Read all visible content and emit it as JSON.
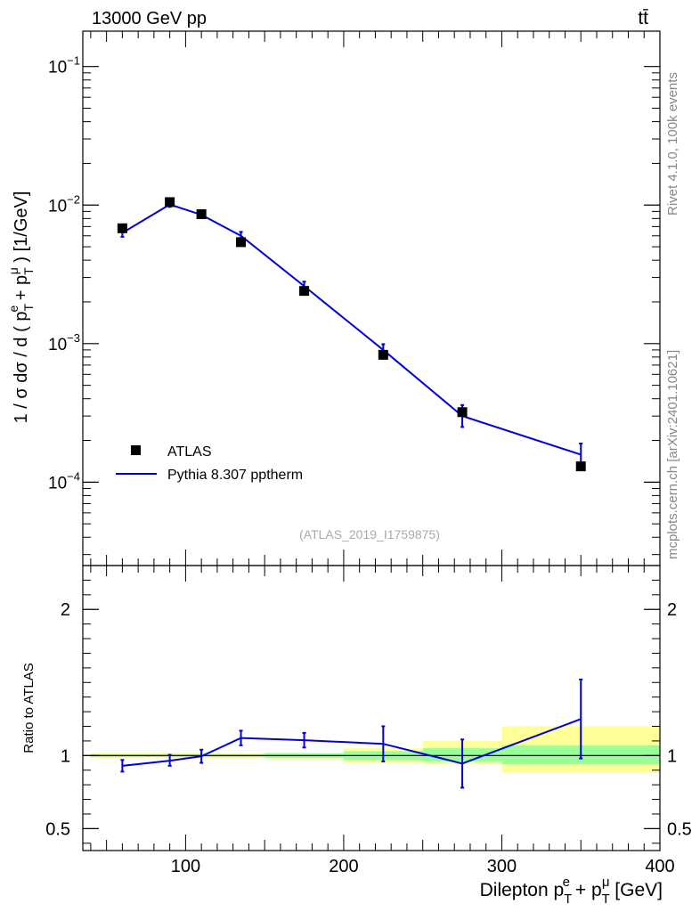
{
  "header": {
    "left": "13000 GeV pp",
    "right": "tt̄"
  },
  "side_labels": {
    "rivet": "Rivet 4.1.0,  100k events",
    "mcplots": "mcplots.cern.ch [arXiv:2401.10621]"
  },
  "watermark": "(ATLAS_2019_I1759875)",
  "colors": {
    "data": "#000000",
    "mc": "#0000dd",
    "band_inner": "#99ff99",
    "band_outer": "#ffff99"
  },
  "chart_data": [
    {
      "type": "line",
      "scale": "log",
      "title": "",
      "ylabel": "1 / σ  dσ / d ( p_T^e + p_T^μ ) [1/GeV]",
      "ylim": [
        2.5e-05,
        0.18
      ],
      "yticks": [
        {
          "value": 0.1,
          "mantissa": "10",
          "exp": "−1"
        },
        {
          "value": 0.01,
          "mantissa": "10",
          "exp": "−2"
        },
        {
          "value": 0.001,
          "mantissa": "10",
          "exp": "−3"
        },
        {
          "value": 0.0001,
          "mantissa": "10",
          "exp": "−4"
        }
      ],
      "xlim": [
        35,
        400
      ],
      "legend": {
        "position": "lower-left",
        "data_label": "ATLAS",
        "mc_label": "Pythia 8.307 pptherm"
      },
      "data_series": {
        "name": "ATLAS",
        "points": [
          {
            "x": 60,
            "y": 0.0068
          },
          {
            "x": 90,
            "y": 0.0105
          },
          {
            "x": 110,
            "y": 0.0086
          },
          {
            "x": 135,
            "y": 0.0054
          },
          {
            "x": 175,
            "y": 0.0024
          },
          {
            "x": 225,
            "y": 0.00083
          },
          {
            "x": 275,
            "y": 0.00032
          },
          {
            "x": 350,
            "y": 0.00013
          }
        ]
      },
      "mc_series": {
        "name": "Pythia 8.307 pptherm",
        "points": [
          {
            "x": 60,
            "y": 0.0063,
            "lo": 0.0059,
            "hi": 0.0067
          },
          {
            "x": 90,
            "y": 0.0101,
            "lo": 0.0097,
            "hi": 0.0105
          },
          {
            "x": 110,
            "y": 0.0085,
            "lo": 0.0081,
            "hi": 0.0089
          },
          {
            "x": 135,
            "y": 0.006,
            "lo": 0.0057,
            "hi": 0.0064
          },
          {
            "x": 175,
            "y": 0.0026,
            "lo": 0.0024,
            "hi": 0.0028
          },
          {
            "x": 225,
            "y": 0.0009,
            "lo": 0.00081,
            "hi": 0.00099
          },
          {
            "x": 275,
            "y": 0.0003,
            "lo": 0.00025,
            "hi": 0.00036
          },
          {
            "x": 350,
            "y": 0.000158,
            "lo": 0.000128,
            "hi": 0.00019
          }
        ]
      }
    },
    {
      "type": "line",
      "scale": "linear",
      "title": "",
      "ylabel": "Ratio to ATLAS",
      "xlabel": "Dilepton p_T^e + p_T^μ [GeV]",
      "ylim": [
        0.35,
        2.3
      ],
      "yticks": [
        {
          "value": 0.5,
          "label": "0.5"
        },
        {
          "value": 1,
          "label": "1"
        },
        {
          "value": 2,
          "label": "2"
        }
      ],
      "xlim": [
        35,
        400
      ],
      "xticks": [
        {
          "value": 100,
          "label": "100"
        },
        {
          "value": 200,
          "label": "200"
        },
        {
          "value": 300,
          "label": "300"
        },
        {
          "value": 400,
          "label": "400"
        }
      ],
      "bands": [
        {
          "x0": 40,
          "x1": 80,
          "inner": [
            0.99,
            1.01
          ],
          "outer": [
            0.985,
            1.015
          ]
        },
        {
          "x0": 80,
          "x1": 100,
          "inner": [
            0.99,
            1.01
          ],
          "outer": [
            0.985,
            1.015
          ]
        },
        {
          "x0": 100,
          "x1": 120,
          "inner": [
            0.99,
            1.01
          ],
          "outer": [
            0.985,
            1.015
          ]
        },
        {
          "x0": 120,
          "x1": 150,
          "inner": [
            0.99,
            1.01
          ],
          "outer": [
            0.985,
            1.015
          ]
        },
        {
          "x0": 150,
          "x1": 200,
          "inner": [
            0.985,
            1.015
          ],
          "outer": [
            0.975,
            1.02
          ]
        },
        {
          "x0": 200,
          "x1": 250,
          "inner": [
            0.97,
            1.03
          ],
          "outer": [
            0.95,
            1.05
          ]
        },
        {
          "x0": 250,
          "x1": 300,
          "inner": [
            0.96,
            1.05
          ],
          "outer": [
            0.94,
            1.1
          ]
        },
        {
          "x0": 300,
          "x1": 400,
          "inner": [
            0.94,
            1.07
          ],
          "outer": [
            0.88,
            1.2
          ]
        }
      ],
      "points": [
        {
          "x": 60,
          "y": 0.93,
          "lo": 0.89,
          "hi": 0.97
        },
        {
          "x": 90,
          "y": 0.965,
          "lo": 0.93,
          "hi": 1.005
        },
        {
          "x": 110,
          "y": 0.995,
          "lo": 0.95,
          "hi": 1.04
        },
        {
          "x": 135,
          "y": 1.12,
          "lo": 1.07,
          "hi": 1.17
        },
        {
          "x": 175,
          "y": 1.105,
          "lo": 1.055,
          "hi": 1.155
        },
        {
          "x": 225,
          "y": 1.08,
          "lo": 0.96,
          "hi": 1.2
        },
        {
          "x": 275,
          "y": 0.945,
          "lo": 0.78,
          "hi": 1.11
        },
        {
          "x": 350,
          "y": 1.25,
          "lo": 0.98,
          "hi": 1.52
        }
      ]
    }
  ]
}
